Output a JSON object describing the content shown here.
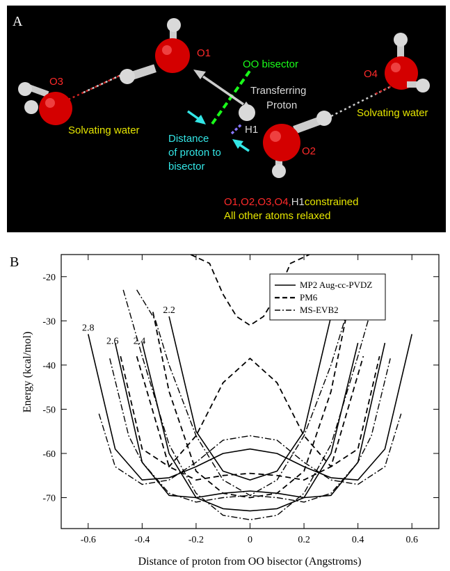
{
  "panel_a": {
    "letter": "A",
    "atom_labels": {
      "o1": "O1",
      "o2": "O2",
      "o3": "O3",
      "o4": "O4",
      "h1": "H1"
    },
    "oo_bisector": "OO bisector",
    "transferring_proton": [
      "Transferring",
      "Proton"
    ],
    "solvating_water_left": "Solvating water",
    "solvating_water_right": "Solvating water",
    "distance_label": [
      "Distance",
      "of proton to",
      "bisector"
    ],
    "constraint_red": "O1,O2,O3,O4,",
    "constraint_white": "H1",
    "constraint_yellow": "constrained",
    "relaxed": "All other atoms relaxed",
    "colors": {
      "background": "#000000",
      "oxygen": "#d40000",
      "hydrogen": "#d9d9d9",
      "red_text": "#ff2a2a",
      "green": "#1aff1a",
      "cyan": "#33e6e6",
      "yellow": "#e6e600",
      "white_text": "#d9d9d9"
    }
  },
  "panel_b": {
    "letter": "B"
  },
  "chart_data": {
    "type": "line",
    "xlabel": "Distance of proton from OO bisector (Angstroms)",
    "ylabel": "Energy (kcal/mol)",
    "xlim": [
      -0.7,
      0.7
    ],
    "ylim": [
      -77,
      -15
    ],
    "xticks": [
      -0.6,
      -0.4,
      -0.2,
      0,
      0.2,
      0.4,
      0.6
    ],
    "xtick_labels": [
      "-0.6",
      "-0.4",
      "-0.2",
      "0",
      "0.2",
      "0.4",
      "0.6"
    ],
    "yticks": [
      -70,
      -60,
      -50,
      -40,
      -30,
      -20
    ],
    "ytick_labels": [
      "-70",
      "-60",
      "-50",
      "-40",
      "-30",
      "-20"
    ],
    "grid": false,
    "legend_position": "top-right",
    "legend": [
      {
        "method": "MP2",
        "label": "MP2 Aug-cc-PVDZ",
        "style": "solid"
      },
      {
        "method": "PM6",
        "label": "PM6",
        "style": "dashed"
      },
      {
        "method": "EVB",
        "label": "MS-EVB2",
        "style": "dashdot"
      }
    ],
    "curve_labels": [
      {
        "text": "2.8",
        "x": -0.6,
        "y": -33.5
      },
      {
        "text": "2.6",
        "x": -0.51,
        "y": -36.5
      },
      {
        "text": "2.4",
        "x": -0.41,
        "y": -36.5
      },
      {
        "text": "2.2",
        "x": -0.3,
        "y": -29.5
      }
    ],
    "series": [
      {
        "name": "MP2 Aug-cc-PVDZ 2.8",
        "method": "MP2",
        "x": [
          -0.6,
          -0.5,
          -0.4,
          -0.3,
          -0.2,
          -0.1,
          0,
          0.1,
          0.2,
          0.3,
          0.4,
          0.5,
          0.6
        ],
        "y": [
          -33,
          -59,
          -66,
          -65.5,
          -63,
          -60,
          -59,
          -60,
          -63,
          -65.5,
          -66,
          -59,
          -33
        ]
      },
      {
        "name": "MP2 Aug-cc-PVDZ 2.6",
        "method": "MP2",
        "x": [
          -0.5,
          -0.4,
          -0.3,
          -0.2,
          -0.1,
          0,
          0.1,
          0.2,
          0.3,
          0.4,
          0.5
        ],
        "y": [
          -35,
          -62,
          -69.5,
          -70,
          -69,
          -68.5,
          -69,
          -70,
          -69.5,
          -62,
          -35
        ]
      },
      {
        "name": "MP2 Aug-cc-PVDZ 2.4",
        "method": "MP2",
        "x": [
          -0.4,
          -0.3,
          -0.2,
          -0.1,
          0,
          0.1,
          0.2,
          0.3,
          0.4
        ],
        "y": [
          -35,
          -60,
          -70,
          -72.5,
          -73,
          -72.5,
          -70,
          -60,
          -35
        ]
      },
      {
        "name": "MP2 Aug-cc-PVDZ 2.2",
        "method": "MP2",
        "x": [
          -0.3,
          -0.2,
          -0.1,
          0,
          0.1,
          0.2,
          0.3
        ],
        "y": [
          -29,
          -55,
          -64,
          -66,
          -64,
          -55,
          -29
        ]
      },
      {
        "name": "PM6 2.8",
        "method": "PM6",
        "x": [
          -0.48,
          -0.4,
          -0.3,
          -0.2,
          -0.1,
          0,
          0.1,
          0.2,
          0.3,
          0.4,
          0.48
        ],
        "y": [
          -38,
          -59,
          -63,
          -56,
          -44,
          -38.5,
          -44,
          -56,
          -63,
          -59,
          -38
        ]
      },
      {
        "name": "PM6 2.6",
        "method": "PM6",
        "x": [
          -0.42,
          -0.3,
          -0.2,
          -0.1,
          0,
          0.1,
          0.2,
          0.3,
          0.42
        ],
        "y": [
          -38,
          -63,
          -66,
          -65,
          -64.5,
          -65,
          -66,
          -63,
          -38
        ]
      },
      {
        "name": "PM6 2.4",
        "method": "PM6",
        "x": [
          -0.36,
          -0.3,
          -0.2,
          -0.1,
          0,
          0.1,
          0.2,
          0.3,
          0.36
        ],
        "y": [
          -28,
          -46,
          -64,
          -69,
          -70,
          -69,
          -64,
          -46,
          -28
        ]
      },
      {
        "name": "PM6 2.2",
        "method": "PM6",
        "x": [
          -0.22,
          -0.15,
          -0.1,
          -0.05,
          0,
          0.05,
          0.1,
          0.15,
          0.22
        ],
        "y": [
          -15,
          -17,
          -24,
          -29,
          -31,
          -29,
          -24,
          -17,
          -15
        ]
      },
      {
        "name": "MS-EVB2 2.8",
        "method": "EVB",
        "x": [
          -0.56,
          -0.5,
          -0.4,
          -0.3,
          -0.2,
          -0.1,
          0,
          0.1,
          0.2,
          0.3,
          0.4,
          0.5,
          0.56
        ],
        "y": [
          -51,
          -63,
          -67,
          -66,
          -62,
          -57,
          -56,
          -57,
          -62,
          -66,
          -67,
          -63,
          -51
        ]
      },
      {
        "name": "MS-EVB2 2.6",
        "method": "EVB",
        "x": [
          -0.52,
          -0.45,
          -0.4,
          -0.3,
          -0.2,
          -0.1,
          0,
          0.1,
          0.2,
          0.3,
          0.4,
          0.45,
          0.52
        ],
        "y": [
          -38.5,
          -56,
          -62,
          -69,
          -71,
          -70,
          -69.5,
          -70,
          -71,
          -69,
          -62,
          -56,
          -38.5
        ]
      },
      {
        "name": "MS-EVB2 2.4",
        "method": "EVB",
        "x": [
          -0.47,
          -0.4,
          -0.3,
          -0.2,
          -0.1,
          0,
          0.1,
          0.2,
          0.3,
          0.4,
          0.47
        ],
        "y": [
          -23,
          -38,
          -58,
          -69,
          -74,
          -75,
          -74,
          -69,
          -58,
          -38,
          -23
        ]
      },
      {
        "name": "MS-EVB2 2.2",
        "method": "EVB",
        "x": [
          -0.42,
          -0.35,
          -0.3,
          -0.2,
          -0.1,
          0,
          0.1,
          0.2,
          0.3,
          0.35,
          0.42
        ],
        "y": [
          -23,
          -30,
          -40,
          -56,
          -66,
          -69.5,
          -66,
          -56,
          -40,
          -30,
          -23
        ]
      }
    ]
  }
}
